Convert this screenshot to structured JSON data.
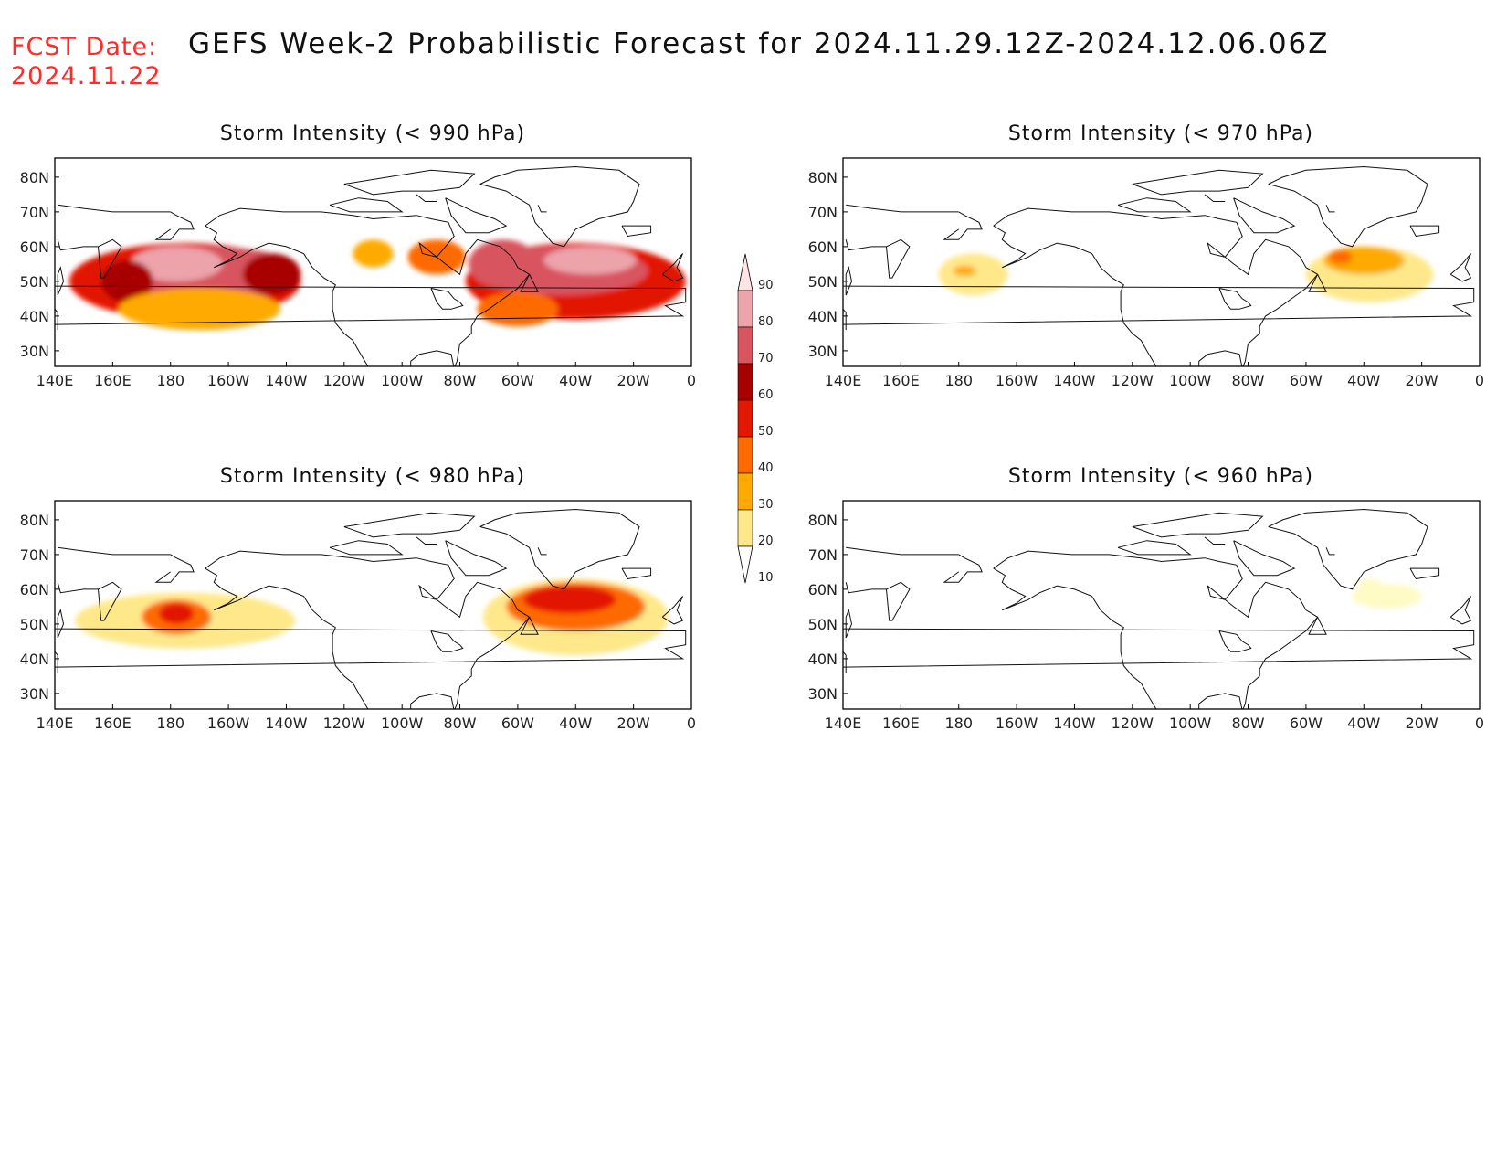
{
  "header": {
    "fcst_line1": "FCST Date:",
    "fcst_line2": "2024.11.22",
    "title": "GEFS Week-2 Probabilistic Forecast for 2024.11.29.12Z-2024.12.06.06Z"
  },
  "colors": {
    "levels": [
      10,
      20,
      30,
      40,
      50,
      60,
      70,
      80,
      90
    ],
    "fills": [
      "#fffbc4",
      "#ffe88a",
      "#ffaa00",
      "#ff6a00",
      "#e21800",
      "#a80000",
      "#d8555f",
      "#eca3aa",
      "#ffe4e6"
    ]
  },
  "axes": {
    "lon_labels": [
      "140E",
      "160E",
      "180",
      "160W",
      "140W",
      "120W",
      "100W",
      "80W",
      "60W",
      "40W",
      "20W",
      "0"
    ],
    "lat_labels": [
      "80N",
      "70N",
      "60N",
      "50N",
      "40N",
      "30N"
    ]
  },
  "panels": [
    {
      "id": "p990",
      "title": "Storm Intensity (< 990 hPa)",
      "blobs": [
        {
          "lon": -175,
          "lat": 50,
          "rx": 40,
          "ry": 11,
          "p": 55
        },
        {
          "lon": -165,
          "lat": 52,
          "rx": 30,
          "ry": 8,
          "p": 70
        },
        {
          "lon": -178,
          "lat": 55,
          "rx": 16,
          "ry": 5,
          "p": 85
        },
        {
          "lon": 165,
          "lat": 50,
          "rx": 9,
          "ry": 6,
          "p": 65
        },
        {
          "lon": -145,
          "lat": 52,
          "rx": 10,
          "ry": 6,
          "p": 60
        },
        {
          "lon": -170,
          "lat": 42,
          "rx": 28,
          "ry": 6,
          "p": 35
        },
        {
          "lon": -40,
          "lat": 50,
          "rx": 38,
          "ry": 11,
          "p": 55
        },
        {
          "lon": -45,
          "lat": 53,
          "rx": 30,
          "ry": 7,
          "p": 75
        },
        {
          "lon": -35,
          "lat": 56,
          "rx": 16,
          "ry": 4,
          "p": 88
        },
        {
          "lon": -65,
          "lat": 55,
          "rx": 12,
          "ry": 7,
          "p": 75
        },
        {
          "lon": -60,
          "lat": 42,
          "rx": 14,
          "ry": 5,
          "p": 45
        },
        {
          "lon": -88,
          "lat": 57,
          "rx": 10,
          "ry": 5,
          "p": 45
        },
        {
          "lon": -110,
          "lat": 58,
          "rx": 7,
          "ry": 4,
          "p": 30
        }
      ]
    },
    {
      "id": "p970",
      "title": "Storm Intensity (< 970 hPa)",
      "blobs": [
        {
          "lon": -175,
          "lat": 52,
          "rx": 12,
          "ry": 6,
          "p": 22
        },
        {
          "lon": -178,
          "lat": 53,
          "rx": 4,
          "ry": 1.5,
          "p": 35
        },
        {
          "lon": -38,
          "lat": 52,
          "rx": 22,
          "ry": 8,
          "p": 22
        },
        {
          "lon": -40,
          "lat": 56,
          "rx": 14,
          "ry": 4,
          "p": 35
        },
        {
          "lon": -48,
          "lat": 57,
          "rx": 4,
          "ry": 2,
          "p": 48
        }
      ]
    },
    {
      "id": "p980",
      "title": "Storm Intensity (< 980 hPa)",
      "blobs": [
        {
          "lon": -175,
          "lat": 51,
          "rx": 38,
          "ry": 8,
          "p": 22
        },
        {
          "lon": -178,
          "lat": 52,
          "rx": 12,
          "ry": 5,
          "p": 40
        },
        {
          "lon": -178,
          "lat": 53,
          "rx": 6,
          "ry": 3,
          "p": 58
        },
        {
          "lon": -40,
          "lat": 52,
          "rx": 32,
          "ry": 11,
          "p": 22
        },
        {
          "lon": -40,
          "lat": 55,
          "rx": 24,
          "ry": 7,
          "p": 45
        },
        {
          "lon": -42,
          "lat": 57,
          "rx": 16,
          "ry": 4,
          "p": 58
        }
      ]
    },
    {
      "id": "p960",
      "title": "Storm Intensity (< 960 hPa)",
      "blobs": [
        {
          "lon": -32,
          "lat": 58,
          "rx": 12,
          "ry": 3.5,
          "p": 15
        },
        {
          "lon": -38,
          "lat": 61,
          "rx": 4,
          "ry": 2,
          "p": 15
        }
      ]
    }
  ]
}
